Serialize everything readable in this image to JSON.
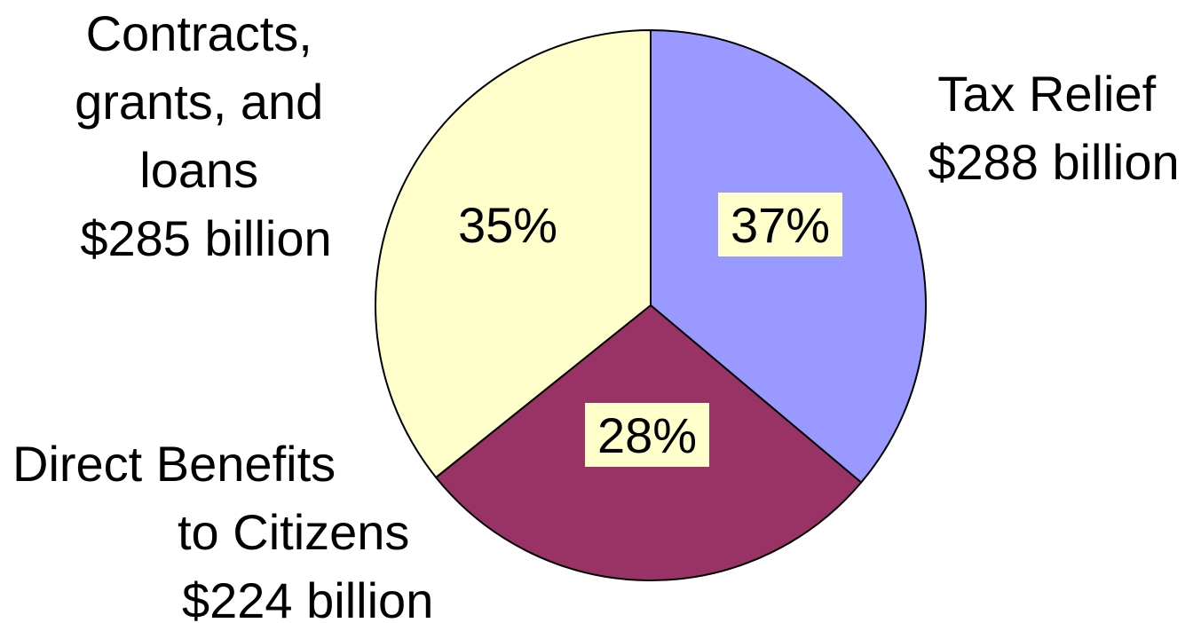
{
  "chart_data": {
    "type": "pie",
    "title": "",
    "slices": [
      {
        "label_lines": [
          "Tax Relief",
          "$288 billion"
        ],
        "value": 288,
        "percent_label": "37%",
        "color": "#9999ff",
        "percent_box_color": "#ffffcc"
      },
      {
        "label_lines": [
          "Direct Benefits",
          "to Citizens",
          "$224 billion"
        ],
        "value": 224,
        "percent_label": "28%",
        "color": "#993366",
        "percent_box_color": "#ffffcc"
      },
      {
        "label_lines": [
          "Contracts,",
          "grants, and",
          "loans",
          "$285 billion"
        ],
        "value": 285,
        "percent_label": "35%",
        "color": "#ffffcc",
        "percent_box_color": null
      }
    ],
    "legend": "none"
  }
}
